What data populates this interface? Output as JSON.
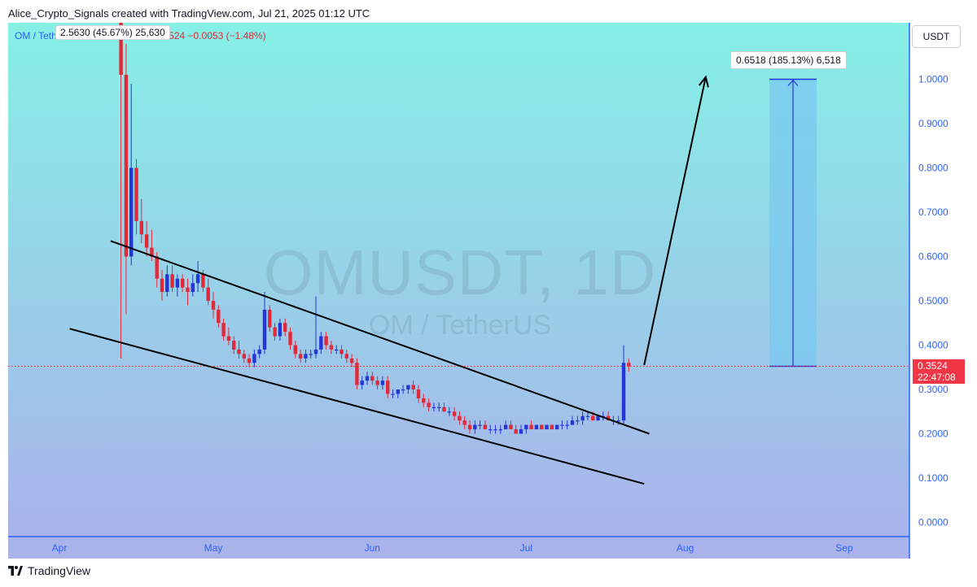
{
  "header": {
    "credit": "Alice_Crypto_Signals created with TradingView.com, Jul 21, 2025 01:12 UTC"
  },
  "legend": {
    "symbol": "OM / TetherUS · 1D · BINANCE",
    "last": "0.3524",
    "change": "−0.0053 (−1.48%)",
    "overlay_text": "2.5630 (45.67%) 25,630"
  },
  "toolbar": {
    "currency": "USDT"
  },
  "watermark": {
    "main": "OMUSDT, 1D",
    "sub": "OM / TetherUS"
  },
  "price_tag": {
    "price": "0.3524",
    "countdown": "22:47:08"
  },
  "measure": {
    "label": "0.6518 (185.13%) 6,518",
    "from": 0.3524,
    "to": 1.0
  },
  "footer": {
    "brand": "TradingView"
  },
  "colors": {
    "up": "#2436d8",
    "down": "#e0293b",
    "axis": "#2962ff",
    "bg_top": "#86f0e6",
    "bg_bottom": "#a9b3ea",
    "measure_fill": "#79c8f0"
  },
  "chart_data": {
    "type": "candlestick",
    "title": "OMUSDT, 1D",
    "y_range": [
      0,
      1.05
    ],
    "y_ticks": [
      0.0,
      0.1,
      0.2,
      0.3,
      0.4,
      0.5,
      0.6,
      0.7,
      0.8,
      0.9,
      1.0
    ],
    "y_tick_labels": [
      "0.0000",
      "0.1000",
      "0.2000",
      "0.3000",
      "0.4000",
      "0.5000",
      "0.6000",
      "0.7000",
      "0.8000",
      "0.9000",
      "1.0000"
    ],
    "x_ticks": [
      "Apr",
      "May",
      "Jun",
      "Jul",
      "Aug",
      "Sep"
    ],
    "x_tick_dates": [
      "2025-04-01",
      "2025-05-01",
      "2025-06-01",
      "2025-07-01",
      "2025-08-01",
      "2025-09-01"
    ],
    "x_range": [
      "2025-03-21",
      "2025-09-11"
    ],
    "last_price": 0.3524,
    "candles": [
      {
        "d": "2025-04-13",
        "o": 6.3,
        "h": 6.7,
        "l": 0.37,
        "c": 1.01
      },
      {
        "d": "2025-04-14",
        "o": 1.01,
        "h": 1.08,
        "l": 0.47,
        "c": 0.6
      },
      {
        "d": "2025-04-15",
        "o": 0.6,
        "h": 0.99,
        "l": 0.58,
        "c": 0.8
      },
      {
        "d": "2025-04-16",
        "o": 0.8,
        "h": 0.82,
        "l": 0.65,
        "c": 0.68
      },
      {
        "d": "2025-04-17",
        "o": 0.68,
        "h": 0.73,
        "l": 0.63,
        "c": 0.65
      },
      {
        "d": "2025-04-18",
        "o": 0.65,
        "h": 0.68,
        "l": 0.6,
        "c": 0.62
      },
      {
        "d": "2025-04-19",
        "o": 0.62,
        "h": 0.66,
        "l": 0.59,
        "c": 0.6
      },
      {
        "d": "2025-04-20",
        "o": 0.6,
        "h": 0.61,
        "l": 0.53,
        "c": 0.55
      },
      {
        "d": "2025-04-21",
        "o": 0.55,
        "h": 0.57,
        "l": 0.5,
        "c": 0.52
      },
      {
        "d": "2025-04-22",
        "o": 0.52,
        "h": 0.58,
        "l": 0.51,
        "c": 0.56
      },
      {
        "d": "2025-04-23",
        "o": 0.56,
        "h": 0.58,
        "l": 0.52,
        "c": 0.53
      },
      {
        "d": "2025-04-24",
        "o": 0.53,
        "h": 0.56,
        "l": 0.51,
        "c": 0.55
      },
      {
        "d": "2025-04-25",
        "o": 0.55,
        "h": 0.56,
        "l": 0.52,
        "c": 0.53
      },
      {
        "d": "2025-04-26",
        "o": 0.53,
        "h": 0.55,
        "l": 0.49,
        "c": 0.52
      },
      {
        "d": "2025-04-27",
        "o": 0.52,
        "h": 0.56,
        "l": 0.51,
        "c": 0.54
      },
      {
        "d": "2025-04-28",
        "o": 0.54,
        "h": 0.59,
        "l": 0.52,
        "c": 0.56
      },
      {
        "d": "2025-04-29",
        "o": 0.56,
        "h": 0.57,
        "l": 0.52,
        "c": 0.53
      },
      {
        "d": "2025-04-30",
        "o": 0.53,
        "h": 0.55,
        "l": 0.49,
        "c": 0.5
      },
      {
        "d": "2025-05-01",
        "o": 0.5,
        "h": 0.52,
        "l": 0.46,
        "c": 0.48
      },
      {
        "d": "2025-05-02",
        "o": 0.48,
        "h": 0.49,
        "l": 0.44,
        "c": 0.45
      },
      {
        "d": "2025-05-03",
        "o": 0.45,
        "h": 0.46,
        "l": 0.41,
        "c": 0.42
      },
      {
        "d": "2025-05-04",
        "o": 0.42,
        "h": 0.44,
        "l": 0.4,
        "c": 0.41
      },
      {
        "d": "2025-05-05",
        "o": 0.41,
        "h": 0.42,
        "l": 0.38,
        "c": 0.39
      },
      {
        "d": "2025-05-06",
        "o": 0.39,
        "h": 0.41,
        "l": 0.37,
        "c": 0.38
      },
      {
        "d": "2025-05-07",
        "o": 0.38,
        "h": 0.39,
        "l": 0.36,
        "c": 0.37
      },
      {
        "d": "2025-05-08",
        "o": 0.37,
        "h": 0.38,
        "l": 0.35,
        "c": 0.36
      },
      {
        "d": "2025-05-09",
        "o": 0.36,
        "h": 0.39,
        "l": 0.35,
        "c": 0.38
      },
      {
        "d": "2025-05-10",
        "o": 0.38,
        "h": 0.4,
        "l": 0.37,
        "c": 0.39
      },
      {
        "d": "2025-05-11",
        "o": 0.39,
        "h": 0.52,
        "l": 0.38,
        "c": 0.48
      },
      {
        "d": "2025-05-12",
        "o": 0.48,
        "h": 0.49,
        "l": 0.43,
        "c": 0.44
      },
      {
        "d": "2025-05-13",
        "o": 0.44,
        "h": 0.45,
        "l": 0.41,
        "c": 0.42
      },
      {
        "d": "2025-05-14",
        "o": 0.42,
        "h": 0.46,
        "l": 0.41,
        "c": 0.45
      },
      {
        "d": "2025-05-15",
        "o": 0.45,
        "h": 0.46,
        "l": 0.42,
        "c": 0.43
      },
      {
        "d": "2025-05-16",
        "o": 0.43,
        "h": 0.44,
        "l": 0.39,
        "c": 0.4
      },
      {
        "d": "2025-05-17",
        "o": 0.4,
        "h": 0.41,
        "l": 0.37,
        "c": 0.38
      },
      {
        "d": "2025-05-18",
        "o": 0.38,
        "h": 0.39,
        "l": 0.36,
        "c": 0.37
      },
      {
        "d": "2025-05-19",
        "o": 0.37,
        "h": 0.39,
        "l": 0.36,
        "c": 0.38
      },
      {
        "d": "2025-05-20",
        "o": 0.38,
        "h": 0.39,
        "l": 0.37,
        "c": 0.38
      },
      {
        "d": "2025-05-21",
        "o": 0.38,
        "h": 0.51,
        "l": 0.37,
        "c": 0.39
      },
      {
        "d": "2025-05-22",
        "o": 0.39,
        "h": 0.43,
        "l": 0.38,
        "c": 0.42
      },
      {
        "d": "2025-05-23",
        "o": 0.42,
        "h": 0.43,
        "l": 0.39,
        "c": 0.4
      },
      {
        "d": "2025-05-24",
        "o": 0.4,
        "h": 0.41,
        "l": 0.38,
        "c": 0.39
      },
      {
        "d": "2025-05-25",
        "o": 0.39,
        "h": 0.4,
        "l": 0.38,
        "c": 0.39
      },
      {
        "d": "2025-05-26",
        "o": 0.39,
        "h": 0.4,
        "l": 0.37,
        "c": 0.38
      },
      {
        "d": "2025-05-27",
        "o": 0.38,
        "h": 0.39,
        "l": 0.36,
        "c": 0.37
      },
      {
        "d": "2025-05-28",
        "o": 0.37,
        "h": 0.38,
        "l": 0.35,
        "c": 0.36
      },
      {
        "d": "2025-05-29",
        "o": 0.36,
        "h": 0.37,
        "l": 0.3,
        "c": 0.31
      },
      {
        "d": "2025-05-30",
        "o": 0.31,
        "h": 0.33,
        "l": 0.3,
        "c": 0.32
      },
      {
        "d": "2025-05-31",
        "o": 0.32,
        "h": 0.34,
        "l": 0.31,
        "c": 0.33
      },
      {
        "d": "2025-06-01",
        "o": 0.33,
        "h": 0.34,
        "l": 0.31,
        "c": 0.32
      },
      {
        "d": "2025-06-02",
        "o": 0.32,
        "h": 0.33,
        "l": 0.3,
        "c": 0.31
      },
      {
        "d": "2025-06-03",
        "o": 0.31,
        "h": 0.33,
        "l": 0.3,
        "c": 0.32
      },
      {
        "d": "2025-06-04",
        "o": 0.32,
        "h": 0.33,
        "l": 0.28,
        "c": 0.29
      },
      {
        "d": "2025-06-05",
        "o": 0.29,
        "h": 0.3,
        "l": 0.28,
        "c": 0.29
      },
      {
        "d": "2025-06-06",
        "o": 0.29,
        "h": 0.3,
        "l": 0.28,
        "c": 0.3
      },
      {
        "d": "2025-06-07",
        "o": 0.3,
        "h": 0.31,
        "l": 0.29,
        "c": 0.3
      },
      {
        "d": "2025-06-08",
        "o": 0.3,
        "h": 0.31,
        "l": 0.29,
        "c": 0.31
      },
      {
        "d": "2025-06-09",
        "o": 0.31,
        "h": 0.32,
        "l": 0.29,
        "c": 0.3
      },
      {
        "d": "2025-06-10",
        "o": 0.3,
        "h": 0.31,
        "l": 0.27,
        "c": 0.28
      },
      {
        "d": "2025-06-11",
        "o": 0.28,
        "h": 0.29,
        "l": 0.26,
        "c": 0.27
      },
      {
        "d": "2025-06-12",
        "o": 0.27,
        "h": 0.28,
        "l": 0.25,
        "c": 0.26
      },
      {
        "d": "2025-06-13",
        "o": 0.26,
        "h": 0.27,
        "l": 0.25,
        "c": 0.26
      },
      {
        "d": "2025-06-14",
        "o": 0.26,
        "h": 0.27,
        "l": 0.25,
        "c": 0.26
      },
      {
        "d": "2025-06-15",
        "o": 0.26,
        "h": 0.27,
        "l": 0.25,
        "c": 0.25
      },
      {
        "d": "2025-06-16",
        "o": 0.25,
        "h": 0.26,
        "l": 0.24,
        "c": 0.25
      },
      {
        "d": "2025-06-17",
        "o": 0.25,
        "h": 0.26,
        "l": 0.23,
        "c": 0.24
      },
      {
        "d": "2025-06-18",
        "o": 0.24,
        "h": 0.25,
        "l": 0.22,
        "c": 0.23
      },
      {
        "d": "2025-06-19",
        "o": 0.23,
        "h": 0.24,
        "l": 0.21,
        "c": 0.22
      },
      {
        "d": "2025-06-20",
        "o": 0.22,
        "h": 0.23,
        "l": 0.2,
        "c": 0.21
      },
      {
        "d": "2025-06-21",
        "o": 0.21,
        "h": 0.23,
        "l": 0.2,
        "c": 0.22
      },
      {
        "d": "2025-06-22",
        "o": 0.22,
        "h": 0.23,
        "l": 0.21,
        "c": 0.22
      },
      {
        "d": "2025-06-23",
        "o": 0.22,
        "h": 0.23,
        "l": 0.21,
        "c": 0.21
      },
      {
        "d": "2025-06-24",
        "o": 0.21,
        "h": 0.22,
        "l": 0.2,
        "c": 0.21
      },
      {
        "d": "2025-06-25",
        "o": 0.21,
        "h": 0.22,
        "l": 0.2,
        "c": 0.21
      },
      {
        "d": "2025-06-26",
        "o": 0.21,
        "h": 0.22,
        "l": 0.2,
        "c": 0.21
      },
      {
        "d": "2025-06-27",
        "o": 0.21,
        "h": 0.23,
        "l": 0.21,
        "c": 0.22
      },
      {
        "d": "2025-06-28",
        "o": 0.22,
        "h": 0.23,
        "l": 0.21,
        "c": 0.21
      },
      {
        "d": "2025-06-29",
        "o": 0.21,
        "h": 0.22,
        "l": 0.2,
        "c": 0.2
      },
      {
        "d": "2025-06-30",
        "o": 0.2,
        "h": 0.22,
        "l": 0.2,
        "c": 0.21
      },
      {
        "d": "2025-07-01",
        "o": 0.21,
        "h": 0.22,
        "l": 0.2,
        "c": 0.22
      },
      {
        "d": "2025-07-02",
        "o": 0.22,
        "h": 0.23,
        "l": 0.21,
        "c": 0.21
      },
      {
        "d": "2025-07-03",
        "o": 0.21,
        "h": 0.22,
        "l": 0.21,
        "c": 0.22
      },
      {
        "d": "2025-07-04",
        "o": 0.22,
        "h": 0.22,
        "l": 0.21,
        "c": 0.21
      },
      {
        "d": "2025-07-05",
        "o": 0.21,
        "h": 0.22,
        "l": 0.21,
        "c": 0.22
      },
      {
        "d": "2025-07-06",
        "o": 0.22,
        "h": 0.22,
        "l": 0.21,
        "c": 0.21
      },
      {
        "d": "2025-07-07",
        "o": 0.21,
        "h": 0.22,
        "l": 0.21,
        "c": 0.22
      },
      {
        "d": "2025-07-08",
        "o": 0.22,
        "h": 0.23,
        "l": 0.21,
        "c": 0.22
      },
      {
        "d": "2025-07-09",
        "o": 0.22,
        "h": 0.23,
        "l": 0.21,
        "c": 0.22
      },
      {
        "d": "2025-07-10",
        "o": 0.22,
        "h": 0.24,
        "l": 0.22,
        "c": 0.23
      },
      {
        "d": "2025-07-11",
        "o": 0.23,
        "h": 0.24,
        "l": 0.22,
        "c": 0.23
      },
      {
        "d": "2025-07-12",
        "o": 0.23,
        "h": 0.25,
        "l": 0.22,
        "c": 0.24
      },
      {
        "d": "2025-07-13",
        "o": 0.24,
        "h": 0.25,
        "l": 0.23,
        "c": 0.24
      },
      {
        "d": "2025-07-14",
        "o": 0.24,
        "h": 0.25,
        "l": 0.23,
        "c": 0.23
      },
      {
        "d": "2025-07-15",
        "o": 0.23,
        "h": 0.24,
        "l": 0.23,
        "c": 0.24
      },
      {
        "d": "2025-07-16",
        "o": 0.24,
        "h": 0.25,
        "l": 0.23,
        "c": 0.24
      },
      {
        "d": "2025-07-17",
        "o": 0.24,
        "h": 0.25,
        "l": 0.23,
        "c": 0.23
      },
      {
        "d": "2025-07-18",
        "o": 0.23,
        "h": 0.24,
        "l": 0.22,
        "c": 0.23
      },
      {
        "d": "2025-07-19",
        "o": 0.23,
        "h": 0.24,
        "l": 0.22,
        "c": 0.23
      },
      {
        "d": "2025-07-20",
        "o": 0.23,
        "h": 0.4,
        "l": 0.22,
        "c": 0.36
      },
      {
        "d": "2025-07-21",
        "o": 0.36,
        "h": 0.37,
        "l": 0.34,
        "c": 0.3524
      }
    ],
    "trendlines": [
      {
        "name": "upper",
        "from": {
          "d": "2025-04-11",
          "v": 0.635
        },
        "to": {
          "d": "2025-07-25",
          "v": 0.2
        }
      },
      {
        "name": "lower",
        "from": {
          "d": "2025-04-03",
          "v": 0.437
        },
        "to": {
          "d": "2025-07-24",
          "v": 0.087
        }
      },
      {
        "name": "projection",
        "from": {
          "d": "2025-07-24",
          "v": 0.355
        },
        "to": {
          "d": "2025-08-05",
          "v": 1.005
        }
      }
    ]
  }
}
